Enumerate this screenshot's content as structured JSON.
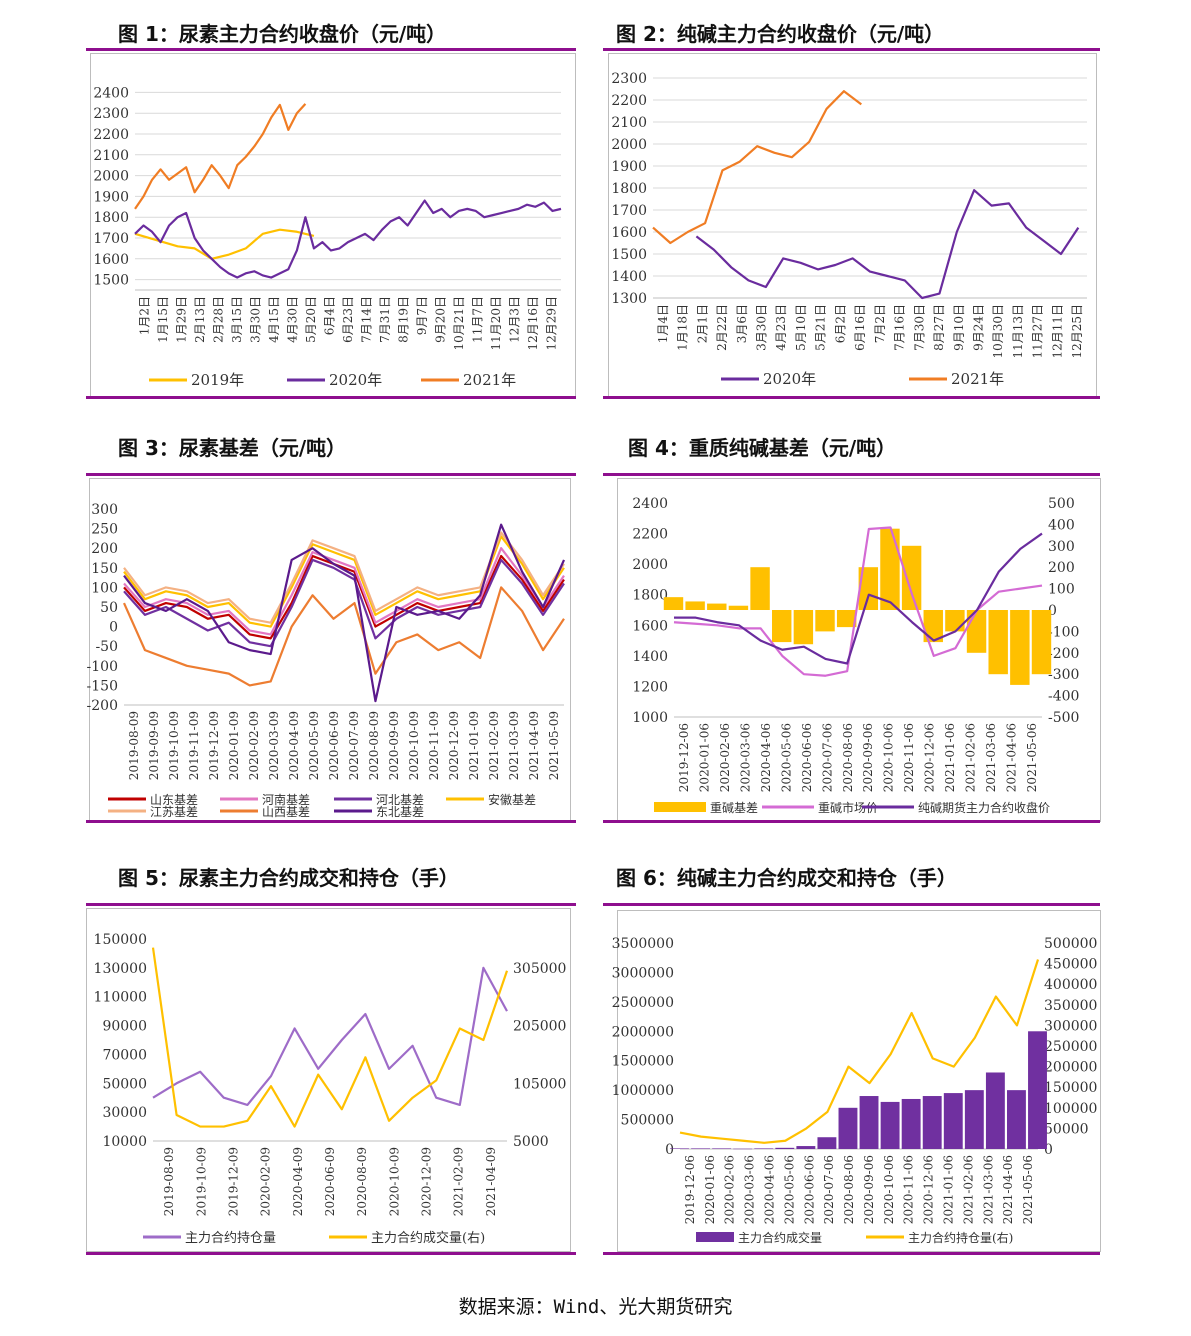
{
  "footer": "数据来源：Wind、光大期货研究",
  "colors": {
    "purple": "#6a2c9e",
    "orange": "#f07d24",
    "yellow": "#ffc000",
    "rule": "#8e0f8e"
  },
  "charts": [
    {
      "id": "c1",
      "title": "图 1：尿素主力合约收盘价（元/吨）",
      "chart_data": {
        "type": "line",
        "y_ticks": [
          1500,
          1600,
          1700,
          1800,
          1900,
          2000,
          2100,
          2200,
          2300,
          2400
        ],
        "ylim": [
          1450,
          2450
        ],
        "x_ticks": [
          "1月2日",
          "1月15日",
          "1月29日",
          "2月13日",
          "2月28日",
          "3月15日",
          "3月30日",
          "4月15日",
          "4月30日",
          "5月20日",
          "6月4日",
          "6月23日",
          "7月14日",
          "7月31日",
          "8月19日",
          "9月7日",
          "9月20日",
          "10月21日",
          "11月7日",
          "11月20日",
          "12月3日",
          "12月16日",
          "12月29日"
        ],
        "series": [
          {
            "name": "2019年",
            "color": "#ffc000",
            "x": [
              0,
              0.05,
              0.1,
              0.14,
              0.18,
              0.22,
              0.26,
              0.3,
              0.34,
              0.38,
              0.42
            ],
            "y": [
              1720,
              1690,
              1660,
              1650,
              1600,
              1620,
              1650,
              1720,
              1740,
              1730,
              1710
            ]
          },
          {
            "name": "2020年",
            "color": "#6a2c9e",
            "x": [
              0,
              0.02,
              0.04,
              0.06,
              0.08,
              0.1,
              0.12,
              0.14,
              0.16,
              0.18,
              0.2,
              0.22,
              0.24,
              0.26,
              0.28,
              0.3,
              0.32,
              0.34,
              0.36,
              0.38,
              0.4,
              0.42,
              0.44,
              0.46,
              0.48,
              0.5,
              0.52,
              0.54,
              0.56,
              0.58,
              0.6,
              0.62,
              0.64,
              0.66,
              0.68,
              0.7,
              0.72,
              0.74,
              0.76,
              0.78,
              0.8,
              0.82,
              0.84,
              0.86,
              0.88,
              0.9,
              0.92,
              0.94,
              0.96,
              0.98,
              1.0
            ],
            "y": [
              1720,
              1760,
              1730,
              1680,
              1760,
              1800,
              1820,
              1700,
              1640,
              1600,
              1560,
              1530,
              1510,
              1530,
              1540,
              1520,
              1510,
              1530,
              1550,
              1640,
              1800,
              1650,
              1680,
              1640,
              1650,
              1680,
              1700,
              1720,
              1690,
              1740,
              1780,
              1800,
              1760,
              1820,
              1880,
              1820,
              1840,
              1800,
              1830,
              1840,
              1830,
              1800,
              1810,
              1820,
              1830,
              1840,
              1860,
              1850,
              1870,
              1830,
              1840
            ]
          },
          {
            "name": "2021年",
            "color": "#f07d24",
            "x": [
              0,
              0.02,
              0.04,
              0.06,
              0.08,
              0.1,
              0.12,
              0.14,
              0.16,
              0.18,
              0.2,
              0.22,
              0.24,
              0.26,
              0.28,
              0.3,
              0.32,
              0.34,
              0.36,
              0.38,
              0.4
            ],
            "y": [
              1840,
              1900,
              1980,
              2030,
              1980,
              2010,
              2040,
              1920,
              1980,
              2050,
              2000,
              1940,
              2050,
              2090,
              2140,
              2200,
              2280,
              2340,
              2220,
              2300,
              2345
            ]
          }
        ],
        "legend": [
          "2019年",
          "2020年",
          "2021年"
        ]
      }
    },
    {
      "id": "c2",
      "title": "图 2：纯碱主力合约收盘价（元/吨）",
      "chart_data": {
        "type": "line",
        "y_ticks": [
          1300,
          1400,
          1500,
          1600,
          1700,
          1800,
          1900,
          2000,
          2100,
          2200,
          2300
        ],
        "ylim": [
          1300,
          2300
        ],
        "x_ticks": [
          "1月4日",
          "1月18日",
          "2月1日",
          "2月22日",
          "3月6日",
          "3月30日",
          "4月23日",
          "5月10日",
          "5月21日",
          "6月2日",
          "6月16日",
          "7月2日",
          "7月16日",
          "7月30日",
          "8月27日",
          "9月10日",
          "9月24日",
          "10月30日",
          "11月13日",
          "11月27日",
          "12月11日",
          "12月25日"
        ],
        "series": [
          {
            "name": "2020年",
            "color": "#6a2c9e",
            "x": [
              0.1,
              0.14,
              0.18,
              0.22,
              0.26,
              0.3,
              0.34,
              0.38,
              0.42,
              0.46,
              0.5,
              0.54,
              0.58,
              0.62,
              0.66,
              0.7,
              0.74,
              0.78,
              0.82,
              0.86,
              0.9,
              0.94,
              0.98
            ],
            "y": [
              1580,
              1520,
              1440,
              1380,
              1350,
              1480,
              1460,
              1430,
              1450,
              1480,
              1420,
              1400,
              1380,
              1300,
              1320,
              1600,
              1790,
              1720,
              1730,
              1620,
              1560,
              1500,
              1620
            ]
          },
          {
            "name": "2021年",
            "color": "#f07d24",
            "x": [
              0,
              0.04,
              0.08,
              0.12,
              0.16,
              0.2,
              0.24,
              0.28,
              0.32,
              0.36,
              0.4,
              0.44,
              0.48
            ],
            "y": [
              1620,
              1550,
              1600,
              1640,
              1880,
              1920,
              1990,
              1960,
              1940,
              2010,
              2160,
              2240,
              2180
            ]
          }
        ],
        "legend": [
          "2020年",
          "2021年"
        ]
      }
    },
    {
      "id": "c3",
      "title": "图 3：尿素基差（元/吨）",
      "chart_data": {
        "type": "line",
        "y_ticks": [
          -200,
          -150,
          -100,
          -50,
          0,
          50,
          100,
          150,
          200,
          250,
          300
        ],
        "ylim": [
          -200,
          300
        ],
        "x_ticks": [
          "2019-08-09",
          "2019-09-09",
          "2019-10-09",
          "2019-11-09",
          "2019-12-09",
          "2020-01-09",
          "2020-02-09",
          "2020-03-09",
          "2020-04-09",
          "2020-05-09",
          "2020-06-09",
          "2020-07-09",
          "2020-08-09",
          "2020-09-09",
          "2020-10-09",
          "2020-11-09",
          "2020-12-09",
          "2021-01-09",
          "2021-02-09",
          "2021-03-09",
          "2021-04-09",
          "2021-05-09"
        ],
        "series": [
          {
            "name": "山东基差",
            "color": "#c00000",
            "y": [
              100,
              40,
              60,
              50,
              20,
              30,
              -20,
              -30,
              60,
              180,
              160,
              140,
              0,
              30,
              60,
              40,
              50,
              60,
              180,
              120,
              40,
              120
            ]
          },
          {
            "name": "河南基差",
            "color": "#e377c2",
            "y": [
              110,
              50,
              70,
              60,
              30,
              40,
              -10,
              -20,
              80,
              190,
              170,
              150,
              10,
              40,
              70,
              50,
              60,
              70,
              200,
              130,
              50,
              130
            ]
          },
          {
            "name": "河北基差",
            "color": "#7030a0",
            "y": [
              90,
              30,
              50,
              20,
              -10,
              10,
              -40,
              -50,
              50,
              170,
              150,
              120,
              -30,
              20,
              50,
              30,
              40,
              50,
              170,
              110,
              30,
              110
            ]
          },
          {
            "name": "安徽基差",
            "color": "#ffc000",
            "y": [
              140,
              70,
              90,
              80,
              50,
              60,
              10,
              0,
              100,
              210,
              190,
              170,
              30,
              60,
              90,
              70,
              80,
              90,
              230,
              160,
              70,
              150
            ]
          },
          {
            "name": "江苏基差",
            "color": "#f4b183",
            "y": [
              150,
              80,
              100,
              90,
              60,
              70,
              20,
              10,
              110,
              220,
              200,
              180,
              40,
              70,
              100,
              80,
              90,
              100,
              240,
              170,
              80,
              160
            ]
          },
          {
            "name": "山西基差",
            "color": "#ed7d31",
            "y": [
              60,
              -60,
              -80,
              -100,
              -110,
              -120,
              -150,
              -140,
              0,
              80,
              20,
              60,
              -120,
              -40,
              -20,
              -60,
              -40,
              -80,
              100,
              40,
              -60,
              20
            ]
          },
          {
            "name": "东北基差",
            "color": "#5b1a8c",
            "y": [
              130,
              60,
              40,
              70,
              40,
              -40,
              -60,
              -70,
              170,
              200,
              160,
              130,
              -190,
              50,
              30,
              40,
              20,
              80,
              260,
              140,
              50,
              170
            ]
          }
        ],
        "legend": [
          "山东基差",
          "河南基差",
          "河北基差",
          "安徽基差",
          "江苏基差",
          "山西基差",
          "东北基差"
        ]
      }
    },
    {
      "id": "c4",
      "title": "图 4：重质纯碱基差（元/吨）",
      "chart_data": {
        "type": "line",
        "y_ticks_left": [
          1000,
          1200,
          1400,
          1600,
          1800,
          2000,
          2200,
          2400
        ],
        "ylim_left": [
          1000,
          2400
        ],
        "y_ticks_right": [
          -500,
          -400,
          -300,
          -200,
          -100,
          0,
          100,
          200,
          300,
          400,
          500
        ],
        "ylim_right": [
          -500,
          500
        ],
        "x_ticks": [
          "2019-12-06",
          "2020-01-06",
          "2020-02-06",
          "2020-03-06",
          "2020-04-06",
          "2020-05-06",
          "2020-06-06",
          "2020-07-06",
          "2020-08-06",
          "2020-09-06",
          "2020-10-06",
          "2020-11-06",
          "2020-12-06",
          "2021-01-06",
          "2021-02-06",
          "2021-03-06",
          "2021-04-06",
          "2021-05-06"
        ],
        "series": [
          {
            "name": "重碱基差",
            "color": "#ffc000",
            "axis": "right",
            "y": [
              60,
              40,
              30,
              20,
              200,
              -150,
              -160,
              -100,
              -80,
              200,
              380,
              300,
              -150,
              -100,
              -200,
              -300,
              -350,
              -300
            ]
          },
          {
            "name": "重碱市场价",
            "color": "#d46bd4",
            "axis": "left",
            "y": [
              1620,
              1610,
              1600,
              1580,
              1580,
              1400,
              1280,
              1270,
              1300,
              2230,
              2240,
              1800,
              1400,
              1450,
              1700,
              1820,
              1840,
              1860
            ]
          },
          {
            "name": "纯碱期货主力合约收盘价",
            "color": "#6a2c9e",
            "axis": "left",
            "y": [
              1650,
              1650,
              1620,
              1600,
              1500,
              1440,
              1460,
              1380,
              1350,
              1800,
              1750,
              1620,
              1500,
              1560,
              1700,
              1950,
              2100,
              2200
            ]
          }
        ],
        "legend": [
          "重碱基差",
          "重碱市场价",
          "纯碱期货主力合约收盘价"
        ]
      }
    },
    {
      "id": "c5",
      "title": "图 5：尿素主力合约成交和持仓（手）",
      "chart_data": {
        "type": "line",
        "y_ticks_left": [
          10000,
          30000,
          50000,
          70000,
          90000,
          110000,
          130000,
          150000
        ],
        "ylim_left": [
          10000,
          150000
        ],
        "y_ticks_right": [
          5000,
          105000,
          205000,
          305000
        ],
        "ylim_right": [
          5000,
          355000
        ],
        "x_ticks": [
          "2019-08-09",
          "2019-10-09",
          "2019-12-09",
          "2020-02-09",
          "2020-04-09",
          "2020-06-09",
          "2020-08-09",
          "2020-10-09",
          "2020-12-09",
          "2021-02-09",
          "2021-04-09"
        ],
        "series": [
          {
            "name": "主力合约持仓量",
            "color": "#9e6cc8",
            "axis": "left",
            "y": [
              40000,
              50000,
              58000,
              40000,
              35000,
              55000,
              88000,
              60000,
              80000,
              98000,
              60000,
              76000,
              40000,
              35000,
              130000,
              100000
            ]
          },
          {
            "name": "主力合约成交量(右)",
            "color": "#ffc000",
            "axis": "right",
            "y": [
              340000,
              50000,
              30000,
              30000,
              40000,
              100000,
              30000,
              120000,
              60000,
              150000,
              40000,
              80000,
              110000,
              200000,
              180000,
              300000
            ]
          }
        ],
        "legend": [
          "主力合约持仓量",
          "主力合约成交量(右)"
        ]
      }
    },
    {
      "id": "c6",
      "title": "图 6：纯碱主力合约成交和持仓（手）",
      "chart_data": {
        "type": "bar",
        "y_ticks_left": [
          0,
          500000,
          1000000,
          1500000,
          2000000,
          2500000,
          3000000,
          3500000
        ],
        "ylim_left": [
          0,
          3500000
        ],
        "y_ticks_right": [
          0,
          50000,
          100000,
          150000,
          200000,
          250000,
          300000,
          350000,
          400000,
          450000,
          500000
        ],
        "ylim_right": [
          0,
          500000
        ],
        "x_ticks": [
          "2019-12-06",
          "2020-01-06",
          "2020-02-06",
          "2020-03-06",
          "2020-04-06",
          "2020-05-06",
          "2020-06-06",
          "2020-07-06",
          "2020-08-06",
          "2020-09-06",
          "2020-10-06",
          "2020-11-06",
          "2020-12-06",
          "2021-01-06",
          "2021-02-06",
          "2021-03-06",
          "2021-04-06",
          "2021-05-06"
        ],
        "series": [
          {
            "name": "主力合约成交量",
            "color": "#7030a0",
            "axis": "left",
            "y": [
              10000,
              10000,
              10000,
              5000,
              10000,
              20000,
              50000,
              200000,
              700000,
              900000,
              800000,
              850000,
              900000,
              950000,
              1000000,
              1300000,
              1000000,
              2000000
            ]
          },
          {
            "name": "主力合约持仓量(右)",
            "color": "#ffc000",
            "axis": "right",
            "y": [
              40000,
              30000,
              25000,
              20000,
              15000,
              20000,
              50000,
              90000,
              200000,
              160000,
              230000,
              330000,
              220000,
              200000,
              270000,
              370000,
              300000,
              460000
            ]
          }
        ],
        "legend": [
          "主力合约成交量",
          "主力合约持仓量(右)"
        ]
      }
    }
  ]
}
